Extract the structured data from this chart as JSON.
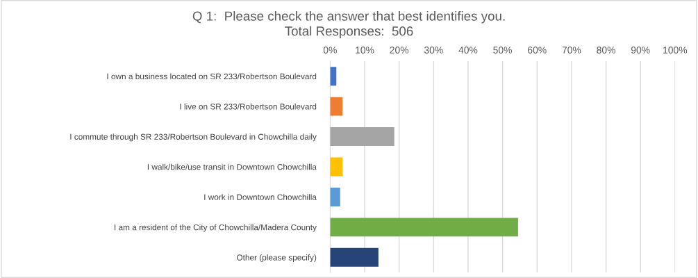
{
  "chart_data": {
    "type": "bar",
    "orientation": "horizontal",
    "title": "Q 1:  Please check the answer that best identifies you.\nTotal Responses:  506",
    "categories": [
      "I own a business located on SR 233/Robertson Boulevard",
      "I live on SR 233/Robertson Boulevard",
      "I commute through SR 233/Robertson Boulevard in Chowchilla daily",
      "I walk/bike/use transit in Downtown Chowchilla",
      "I work in Downtown Chowchilla",
      "I am a resident of the City of Chowchilla/Madera County",
      "Other (please specify)"
    ],
    "values": [
      1.8,
      3.6,
      18.6,
      3.6,
      2.9,
      54.5,
      14.0
    ],
    "colors": [
      "#4472c4",
      "#ed7d31",
      "#a5a5a5",
      "#ffc000",
      "#5b9bd5",
      "#70ad47",
      "#264478"
    ],
    "xlim": [
      0,
      100
    ],
    "xticks": [
      {
        "value": 0,
        "label": "0%"
      },
      {
        "value": 10,
        "label": "10%"
      },
      {
        "value": 20,
        "label": "20%"
      },
      {
        "value": 30,
        "label": "30%"
      },
      {
        "value": 40,
        "label": "40%"
      },
      {
        "value": 50,
        "label": "50%"
      },
      {
        "value": 60,
        "label": "60%"
      },
      {
        "value": 70,
        "label": "70%"
      },
      {
        "value": 80,
        "label": "80%"
      },
      {
        "value": 90,
        "label": "90%"
      },
      {
        "value": 100,
        "label": "100%"
      }
    ],
    "grid": "x"
  }
}
